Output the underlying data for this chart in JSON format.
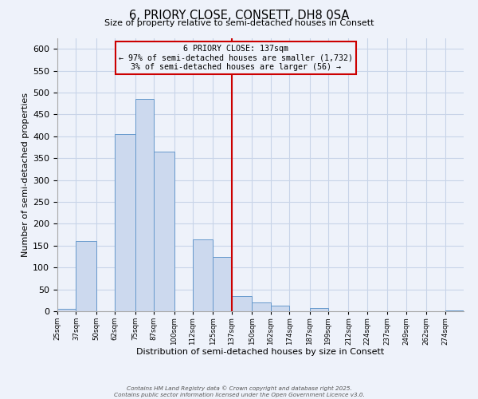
{
  "title": "6, PRIORY CLOSE, CONSETT, DH8 0SA",
  "subtitle": "Size of property relative to semi-detached houses in Consett",
  "xlabel": "Distribution of semi-detached houses by size in Consett",
  "ylabel": "Number of semi-detached properties",
  "bin_edges": [
    25,
    37,
    50,
    62,
    75,
    87,
    100,
    112,
    125,
    137,
    150,
    162,
    174,
    187,
    199,
    212,
    224,
    237,
    249,
    262,
    274,
    286
  ],
  "bar_heights": [
    5,
    160,
    0,
    405,
    485,
    365,
    0,
    165,
    125,
    35,
    20,
    13,
    0,
    8,
    0,
    0,
    0,
    0,
    0,
    0,
    2
  ],
  "bar_color": "#ccd9ee",
  "bar_edge_color": "#6699cc",
  "grid_color": "#c8d4e8",
  "vline_x": 137,
  "vline_color": "#cc0000",
  "annotation_title": "6 PRIORY CLOSE: 137sqm",
  "annotation_line1": "← 97% of semi-detached houses are smaller (1,732)",
  "annotation_line2": "3% of semi-detached houses are larger (56) →",
  "annotation_box_edge": "#cc0000",
  "tick_labels": [
    "25sqm",
    "37sqm",
    "50sqm",
    "62sqm",
    "75sqm",
    "87sqm",
    "100sqm",
    "112sqm",
    "125sqm",
    "137sqm",
    "150sqm",
    "162sqm",
    "174sqm",
    "187sqm",
    "199sqm",
    "212sqm",
    "224sqm",
    "237sqm",
    "249sqm",
    "262sqm",
    "274sqm"
  ],
  "ylim": [
    0,
    625
  ],
  "yticks": [
    0,
    50,
    100,
    150,
    200,
    250,
    300,
    350,
    400,
    450,
    500,
    550,
    600
  ],
  "background_color": "#eef2fa",
  "footnote1": "Contains HM Land Registry data © Crown copyright and database right 2025.",
  "footnote2": "Contains public sector information licensed under the Open Government Licence v3.0."
}
